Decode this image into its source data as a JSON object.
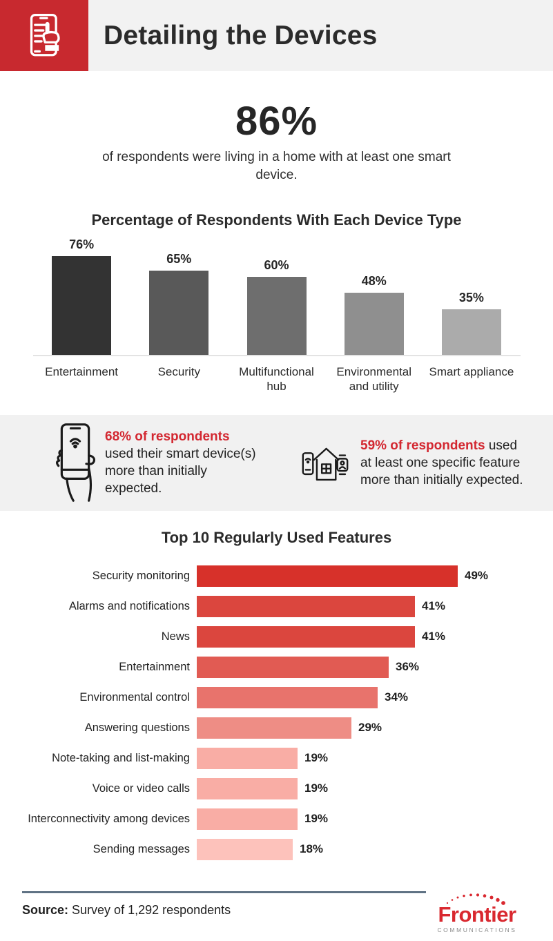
{
  "header": {
    "title": "Detailing the Devices"
  },
  "hero": {
    "value": "86%",
    "description": "of respondents were living in a home with at least one smart device."
  },
  "callouts": [
    {
      "icon": "hand-holding-phone-icon",
      "highlight": "68% of respondents",
      "text": " used their smart device(s) more than initially expected."
    },
    {
      "icon": "smart-home-devices-icon",
      "highlight": "59% of respondents",
      "text": " used at least one specific feature more than initially expected."
    }
  ],
  "footer": {
    "source_label": "Source:",
    "source_text": " Survey of 1,292 respondents",
    "logo_name": "Frontier",
    "logo_sub": "COMMUNICATIONS"
  },
  "colors": {
    "header_red": "#c8292f",
    "accent_red": "#d32730",
    "band_gray": "#f1f1f1",
    "divider_navy": "#3e5469",
    "logo_red": "#d9282f",
    "logo_gray": "#8a8a8a"
  },
  "chart_data": [
    {
      "type": "bar",
      "title": "Percentage of Respondents With Each Device Type",
      "categories": [
        "Entertainment",
        "Security",
        "Multifunctional hub",
        "Environmental and utility",
        "Smart appliance"
      ],
      "values": [
        76,
        65,
        60,
        48,
        35
      ],
      "value_labels": [
        "76%",
        "65%",
        "60%",
        "48%",
        "35%"
      ],
      "bar_colors": [
        "#333333",
        "#595959",
        "#6e6e6e",
        "#8f8f8f",
        "#ababab"
      ],
      "xlabel": "",
      "ylabel": "",
      "ylim": [
        0,
        80
      ],
      "grid": false,
      "legend": false
    },
    {
      "type": "bar-horizontal",
      "title": "Top 10 Regularly Used Features",
      "categories": [
        "Security monitoring",
        "Alarms and notifications",
        "News",
        "Entertainment",
        "Environmental control",
        "Answering questions",
        "Note-taking and list-making",
        "Voice or video calls",
        "Interconnectivity among devices",
        "Sending messages"
      ],
      "values": [
        49,
        41,
        41,
        36,
        34,
        29,
        19,
        19,
        19,
        18
      ],
      "value_labels": [
        "49%",
        "41%",
        "41%",
        "36%",
        "34%",
        "29%",
        "19%",
        "19%",
        "19%",
        "18%"
      ],
      "bar_colors": [
        "#d7312a",
        "#db463e",
        "#db463e",
        "#e15b53",
        "#e8736c",
        "#ee8d85",
        "#f9ada5",
        "#f9ada5",
        "#f9ada5",
        "#fdc2bb"
      ],
      "xlabel": "",
      "ylabel": "",
      "xlim": [
        0,
        55
      ],
      "grid": false,
      "legend": false
    }
  ]
}
